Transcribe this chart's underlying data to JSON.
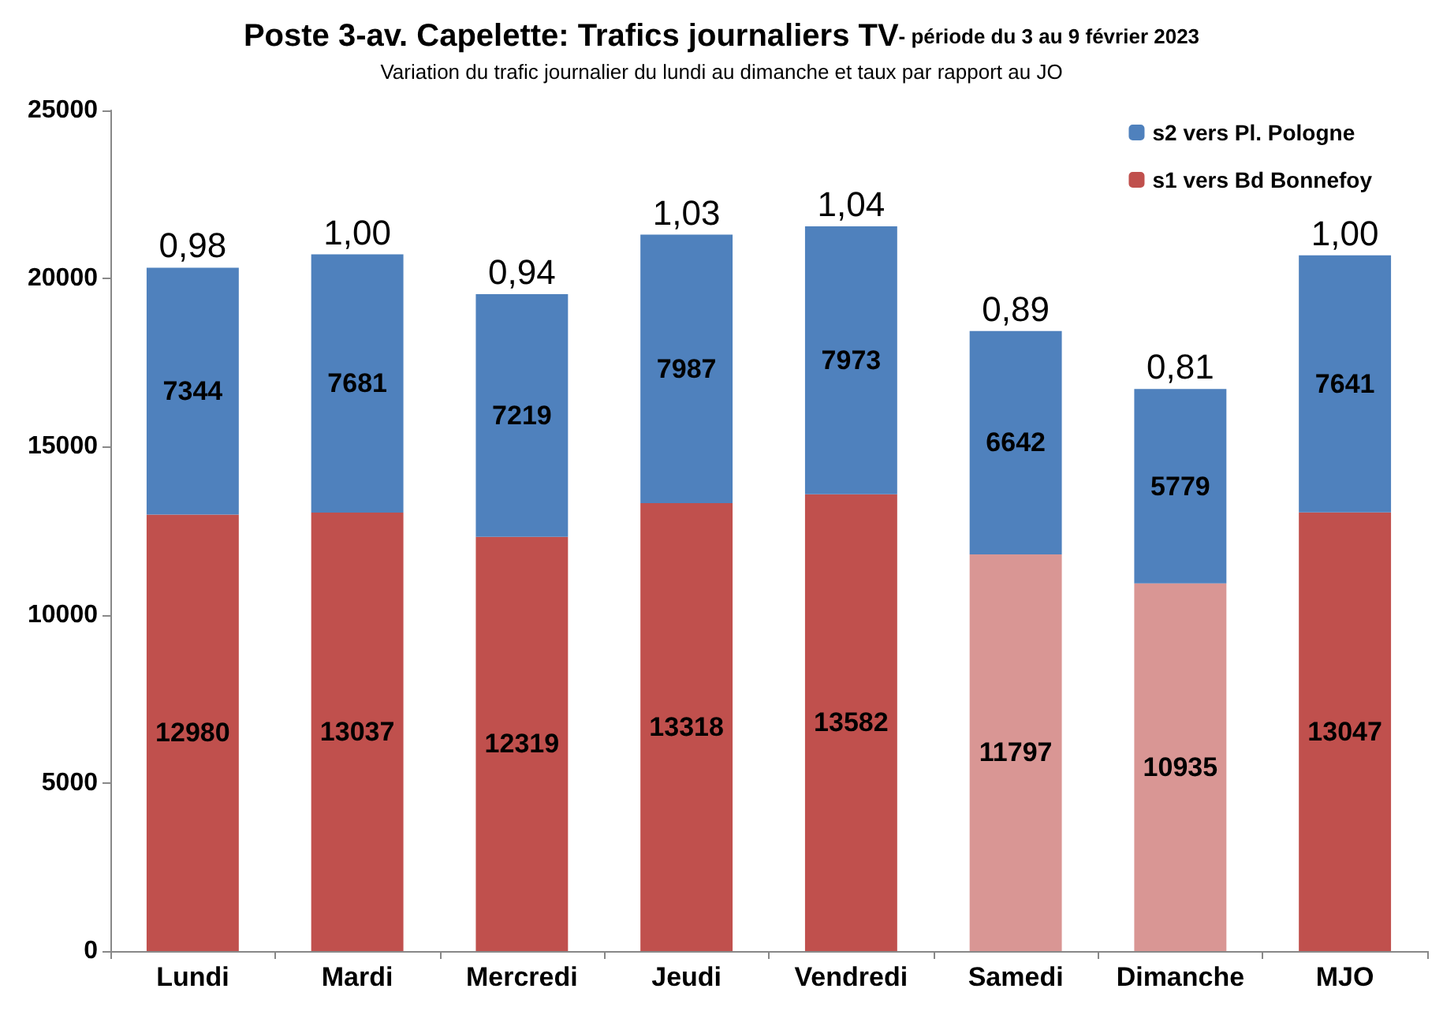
{
  "chart_data": {
    "type": "bar",
    "title": "Poste 3-av. Capelette: Trafics journaliers TV",
    "subtitle": "Variation du trafic journalier du lundi au dimanche et taux par rapport au JO",
    "categories": [
      "Lundi",
      "Mardi",
      "Mercredi",
      "Jeudi",
      "Vendredi",
      "Samedi",
      "Dimanche",
      "MJO"
    ],
    "stacked": true,
    "data_labels": true,
    "grid": false,
    "legend": "top right",
    "ylim": [
      0,
      25000
    ],
    "yticks": [
      0,
      5000,
      10000,
      15000,
      20000,
      25000
    ],
    "series": [
      {
        "name": "s1 vers Bd Bonnefoy",
        "color": "#c0504d",
        "colors": [
          "#c0504d",
          "#c0504d",
          "#c0504d",
          "#c0504d",
          "#c0504d",
          "#d99694",
          "#d99694",
          "#c0504d"
        ],
        "values": [
          12980,
          13037,
          12319,
          13318,
          13582,
          11797,
          10935,
          13047
        ]
      },
      {
        "name": "s2 vers Pl. Pologne",
        "color": "#4f81bd",
        "values": [
          7344,
          7681,
          7219,
          7987,
          7973,
          6642,
          5779,
          7641
        ]
      }
    ],
    "annotations": [
      "- période du 3 au 9 février 2023",
      {
        "text": "0,98",
        "x": "Lundi",
        "y": 20324
      },
      {
        "text": "1,00",
        "x": "Mardi",
        "y": 20718
      },
      {
        "text": "0,94",
        "x": "Mercredi",
        "y": 19538
      },
      {
        "text": "1,03",
        "x": "Jeudi",
        "y": 21305
      },
      {
        "text": "1,04",
        "x": "Vendredi",
        "y": 21555
      },
      {
        "text": "0,89",
        "x": "Samedi",
        "y": 18439
      },
      {
        "text": "0,81",
        "x": "Dimanche",
        "y": 16714
      },
      {
        "text": "1,00",
        "x": "MJO",
        "y": 20688
      }
    ]
  }
}
